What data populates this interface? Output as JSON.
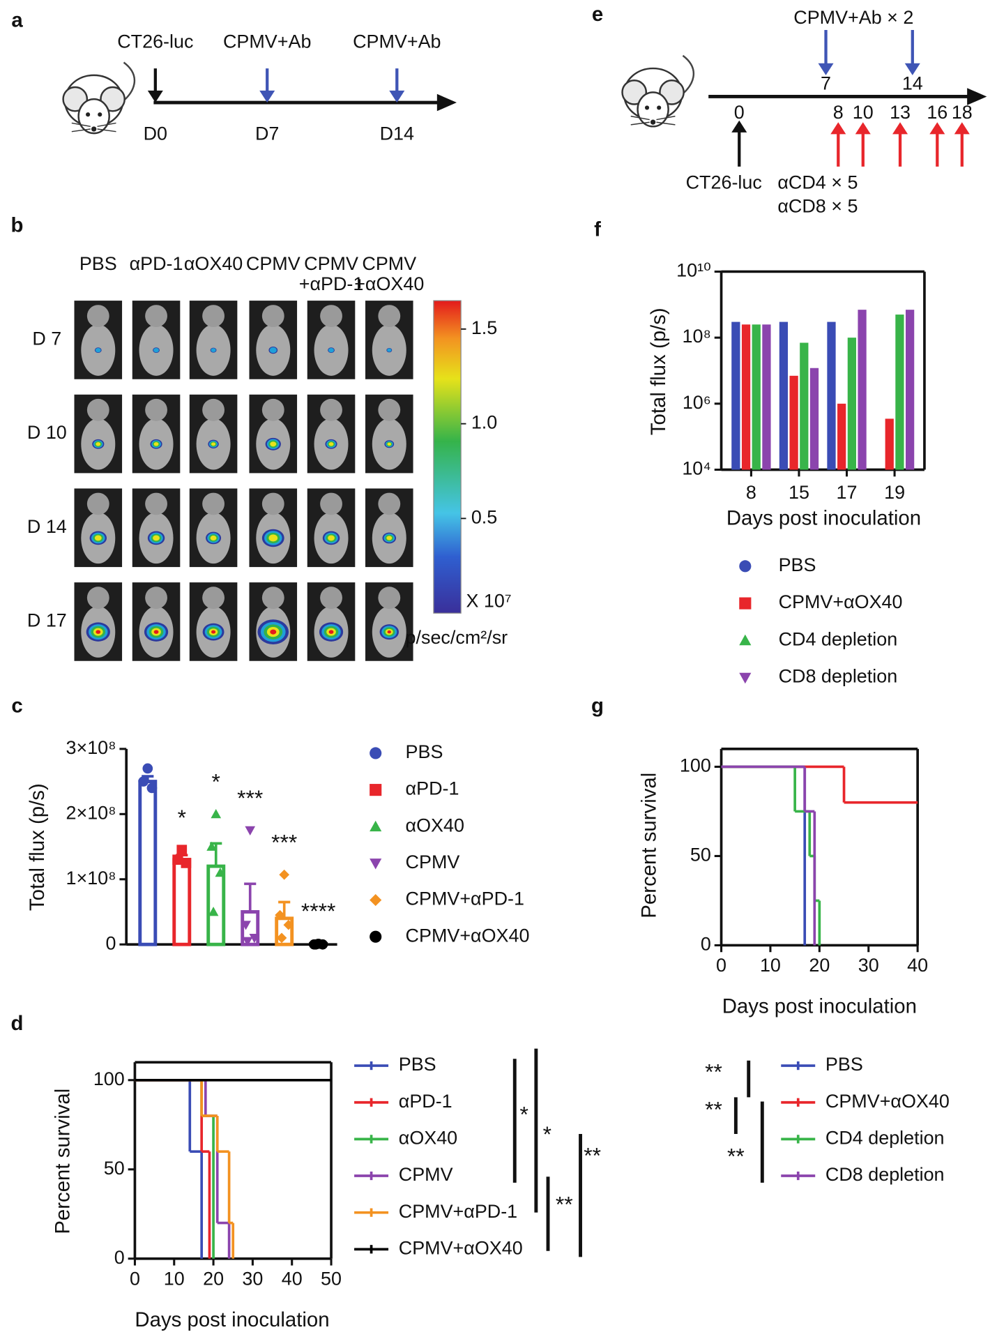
{
  "panel_a": {
    "label": "a",
    "events": [
      {
        "treatment": "CT26-luc",
        "day": "D0"
      },
      {
        "treatment": "CPMV+Ab",
        "day": "D7"
      },
      {
        "treatment": "CPMV+Ab",
        "day": "D14"
      }
    ]
  },
  "panel_b": {
    "label": "b",
    "columns": [
      [
        "PBS"
      ],
      [
        "αPD-1"
      ],
      [
        "αOX40"
      ],
      [
        "CPMV"
      ],
      [
        "CPMV",
        "+αPD-1"
      ],
      [
        "CPMV",
        "+αOX40"
      ]
    ],
    "rows": [
      "D 7",
      "D 10",
      "D 14",
      "D 17"
    ],
    "colorbar": {
      "clim": [
        0,
        1.65
      ],
      "ticks": [
        0.5,
        {
          "value": 1,
          "label": "1.0"
        },
        1.5
      ],
      "unit": "X 10⁷",
      "label": "p/sec/cm²/sr"
    }
  },
  "panel_e": {
    "label": "e",
    "ab_label": "CPMV+Ab × 2",
    "ab_days": [
      7,
      14
    ],
    "inoculation_day": 0,
    "inoculation_label": "CT26-luc",
    "depletion_days": [
      8,
      10,
      13,
      16,
      18
    ],
    "depletion_labels": [
      "αCD4 × 5",
      "αCD8 × 5"
    ]
  },
  "chart_data": [
    {
      "type": "dotbar",
      "label": "c",
      "ylabel": "Total flux (p/s)",
      "ylim": [
        0,
        300000000
      ],
      "yticks": [
        0,
        {
          "value": 100000000,
          "label": "1×10⁸"
        },
        {
          "value": 200000000,
          "label": "2×10⁸"
        },
        {
          "value": 300000000,
          "label": "3×10⁸"
        }
      ],
      "significance": [
        null,
        "*",
        "*",
        "***",
        "***",
        "****"
      ],
      "series": [
        {
          "name": "PBS",
          "color": "#3a4cb5",
          "marker": "circle",
          "values": [
            250000000
          ],
          "errors": [
            8000000
          ],
          "points": [
            270000000,
            250000000,
            240000000
          ]
        },
        {
          "name": "αPD-1",
          "color": "#e8262b",
          "marker": "square",
          "values": [
            130000000
          ],
          "errors": [
            7000000
          ],
          "points": [
            145000000,
            130000000,
            125000000
          ]
        },
        {
          "name": "αOX40",
          "color": "#38b449",
          "marker": "triangle",
          "values": [
            120000000
          ],
          "errors": [
            35000000
          ],
          "points": [
            200000000,
            150000000,
            110000000,
            50000000
          ]
        },
        {
          "name": "CPMV",
          "color": "#8b44ad",
          "marker": "triangle-down",
          "values": [
            50000000
          ],
          "errors": [
            43000000
          ],
          "points": [
            175000000,
            30000000,
            10000000,
            5000000
          ]
        },
        {
          "name": "CPMV+αPD-1",
          "color": "#f39221",
          "marker": "diamond",
          "values": [
            40000000
          ],
          "errors": [
            25000000
          ],
          "points": [
            107000000,
            45000000,
            30000000,
            10000000
          ]
        },
        {
          "name": "CPMV+αOX40",
          "color": "#000000",
          "marker": "circle",
          "values": [
            1000000
          ],
          "errors": [
            500000
          ],
          "points": [
            1000000,
            0,
            0,
            0
          ]
        }
      ]
    },
    {
      "type": "survival",
      "label": "d",
      "xlabel": "Days post inoculation",
      "ylabel": "Percent survival",
      "xlim": [
        0,
        50
      ],
      "xticks": [
        0,
        10,
        20,
        30,
        40,
        50
      ],
      "ylim": [
        0,
        110
      ],
      "yticks": [
        0,
        50,
        100
      ],
      "significance": [
        "*",
        "*",
        "**",
        "**"
      ],
      "series": [
        {
          "name": "PBS",
          "color": "#3a4cb5",
          "x": [
            0,
            14,
            17
          ],
          "values": [
            100,
            60,
            0
          ]
        },
        {
          "name": "αPD-1",
          "color": "#e8262b",
          "x": [
            0,
            17,
            19
          ],
          "values": [
            100,
            60,
            0
          ]
        },
        {
          "name": "αOX40",
          "color": "#38b449",
          "x": [
            0,
            17,
            20
          ],
          "values": [
            100,
            80,
            0
          ]
        },
        {
          "name": "CPMV",
          "color": "#8b44ad",
          "x": [
            0,
            18,
            21,
            24
          ],
          "values": [
            100,
            80,
            20,
            0
          ]
        },
        {
          "name": "CPMV+αPD-1",
          "color": "#f39221",
          "x": [
            0,
            17,
            21,
            24,
            25
          ],
          "values": [
            100,
            80,
            60,
            20,
            0
          ]
        },
        {
          "name": "CPMV+αOX40",
          "color": "#000000",
          "x": [
            0,
            50
          ],
          "values": [
            100,
            100
          ]
        }
      ]
    },
    {
      "type": "bar",
      "label": "f",
      "log_scale": true,
      "xlabel": "Days post inoculation",
      "ylabel": "Total flux (p/s)",
      "categories": [
        "8",
        "15",
        "17",
        "19"
      ],
      "ylim": [
        10000,
        10000000000
      ],
      "yticks": [
        {
          "value": 10000,
          "label": "10⁴"
        },
        {
          "value": 1000000,
          "label": "10⁶"
        },
        {
          "value": 100000000,
          "label": "10⁸"
        },
        {
          "value": 10000000000,
          "label": "10¹⁰"
        }
      ],
      "series": [
        {
          "name": "PBS",
          "color": "#3a4cb5",
          "marker": "circle",
          "values": [
            300000000,
            300000000,
            300000000,
            null
          ]
        },
        {
          "name": "CPMV+αOX40",
          "color": "#e8262b",
          "marker": "square",
          "values": [
            250000000,
            7000000,
            1000000,
            350000
          ]
        },
        {
          "name": "CD4 depletion",
          "color": "#38b449",
          "marker": "triangle",
          "values": [
            250000000,
            70000000,
            100000000,
            500000000
          ]
        },
        {
          "name": "CD8 depletion",
          "color": "#8b44ad",
          "marker": "triangle-down",
          "values": [
            250000000,
            12000000,
            700000000,
            700000000
          ]
        }
      ]
    },
    {
      "type": "survival",
      "label": "g",
      "xlabel": "Days post inoculation",
      "ylabel": "Percent survival",
      "xlim": [
        0,
        40
      ],
      "xticks": [
        0,
        10,
        20,
        30,
        40
      ],
      "ylim": [
        0,
        110
      ],
      "yticks": [
        0,
        50,
        100
      ],
      "significance": [
        "**",
        "**",
        "**"
      ],
      "series": [
        {
          "name": "PBS",
          "color": "#3a4cb5",
          "x": [
            0,
            17
          ],
          "values": [
            100,
            0
          ]
        },
        {
          "name": "CPMV+αOX40",
          "color": "#e8262b",
          "x": [
            0,
            25,
            40
          ],
          "values": [
            100,
            80,
            80
          ]
        },
        {
          "name": "CD4 depletion",
          "color": "#38b449",
          "x": [
            0,
            15,
            18,
            19,
            20
          ],
          "values": [
            100,
            75,
            50,
            25,
            0
          ]
        },
        {
          "name": "CD8 depletion",
          "color": "#8b44ad",
          "x": [
            0,
            17,
            19
          ],
          "values": [
            100,
            75,
            0
          ]
        }
      ]
    }
  ]
}
